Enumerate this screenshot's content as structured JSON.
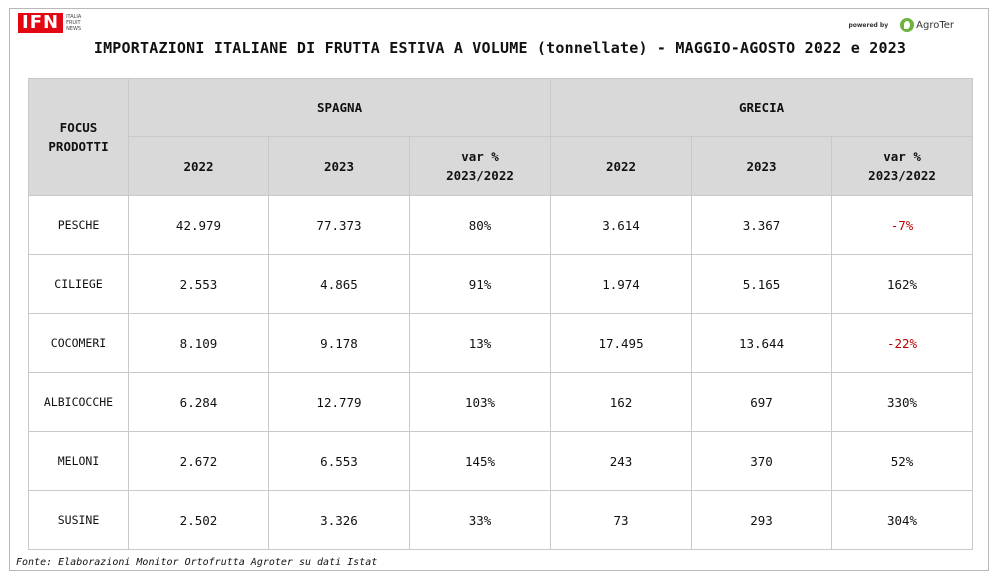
{
  "header": {
    "logo_text": "IFN",
    "logo_sub": [
      "ITALIA",
      "FRUIT",
      "NEWS"
    ],
    "powered_by": "powered by",
    "partner_logo_text": "AgroTer",
    "title": "IMPORTAZIONI ITALIANE DI FRUTTA ESTIVA A VOLUME (tonnellate) - MAGGIO-AGOSTO 2022 e 2023"
  },
  "table": {
    "corner_label": "FOCUS\nPRODOTTI",
    "groups": [
      "SPAGNA",
      "GRECIA"
    ],
    "subcolumns": [
      "2022",
      "2023",
      "var %\n2023/2022"
    ]
  },
  "colors": {
    "header_bg": "#d9d9d9",
    "negative": "#c00000",
    "logo": "#e30613",
    "agroter": "#6cb33f"
  },
  "chart_data": {
    "type": "table",
    "title": "IMPORTAZIONI ITALIANE DI FRUTTA ESTIVA A VOLUME (tonnellate) - MAGGIO-AGOSTO 2022 e 2023",
    "columns": [
      "FOCUS PRODOTTI",
      "SPAGNA 2022",
      "SPAGNA 2023",
      "SPAGNA var % 2023/2022",
      "GRECIA 2022",
      "GRECIA 2023",
      "GRECIA var % 2023/2022"
    ],
    "rows": [
      {
        "product": "PESCHE",
        "spagna": [
          "42.979",
          "77.373",
          "80%"
        ],
        "grecia": [
          "3.614",
          "3.367",
          "-7%"
        ]
      },
      {
        "product": "CILIEGE",
        "spagna": [
          "2.553",
          "4.865",
          "91%"
        ],
        "grecia": [
          "1.974",
          "5.165",
          "162%"
        ]
      },
      {
        "product": "COCOMERI",
        "spagna": [
          "8.109",
          "9.178",
          "13%"
        ],
        "grecia": [
          "17.495",
          "13.644",
          "-22%"
        ]
      },
      {
        "product": "ALBICOCCHE",
        "spagna": [
          "6.284",
          "12.779",
          "103%"
        ],
        "grecia": [
          "162",
          "697",
          "330%"
        ]
      },
      {
        "product": "MELONI",
        "spagna": [
          "2.672",
          "6.553",
          "145%"
        ],
        "grecia": [
          "243",
          "370",
          "52%"
        ]
      },
      {
        "product": "SUSINE",
        "spagna": [
          "2.502",
          "3.326",
          "33%"
        ],
        "grecia": [
          "73",
          "293",
          "304%"
        ]
      }
    ]
  },
  "footer": {
    "source": "Fonte: Elaborazioni Monitor Ortofrutta Agroter su dati Istat"
  }
}
